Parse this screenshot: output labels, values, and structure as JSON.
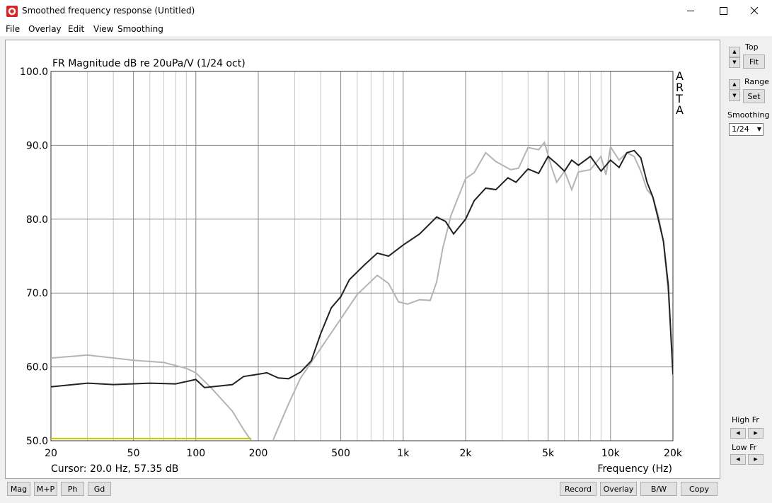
{
  "window": {
    "title": "Smoothed frequency response (Untitled)",
    "menu": [
      "File",
      "Overlay",
      "Edit",
      "View",
      "Smoothing"
    ]
  },
  "side_panel": {
    "top_label": "Top",
    "fit_button": "Fit",
    "range_label": "Range",
    "set_button": "Set",
    "smoothing_label": "Smoothing",
    "smoothing_value": "1/24",
    "high_fr_label": "High Fr",
    "low_fr_label": "Low Fr"
  },
  "bottom_buttons": {
    "left": [
      "Mag",
      "M+P",
      "Ph",
      "Gd"
    ],
    "right": [
      "Record",
      "Overlay",
      "B/W",
      "Copy"
    ]
  },
  "chart_data": {
    "type": "line",
    "title": "FR Magnitude dB re 20uPa/V (1/24 oct)",
    "watermark": "ARTA",
    "cursor": "Cursor: 20.0 Hz, 57.35 dB",
    "x_label": "Frequency (Hz)",
    "xscale": "log",
    "grid": true,
    "xlim": [
      20,
      20000
    ],
    "ylim": [
      50,
      100
    ],
    "xticks": [
      20,
      50,
      100,
      200,
      500,
      {
        "value": 1000,
        "label": "1k"
      },
      {
        "value": 2000,
        "label": "2k"
      },
      {
        "value": 5000,
        "label": "5k"
      },
      {
        "value": 10000,
        "label": "10k"
      },
      {
        "value": 20000,
        "label": "20k"
      }
    ],
    "xgrid": [
      30,
      40,
      60,
      70,
      80,
      90,
      300,
      400,
      600,
      700,
      800,
      900,
      3000,
      4000,
      6000,
      7000,
      8000,
      9000
    ],
    "yticks": [
      {
        "value": 50,
        "label": "50.0"
      },
      {
        "value": 60,
        "label": "60.0"
      },
      {
        "value": 70,
        "label": "70.0"
      },
      {
        "value": 80,
        "label": "80.0"
      },
      {
        "value": 90,
        "label": "90.0"
      },
      {
        "value": 100,
        "label": "100.0"
      }
    ],
    "series": [
      {
        "color": "#b4b4b4",
        "x": [
          20,
          30,
          50,
          70,
          90,
          100,
          120,
          150,
          170,
          185,
          200,
          220,
          235,
          280,
          320,
          400,
          500,
          600,
          750,
          850,
          950,
          1050,
          1200,
          1350,
          1450,
          1550,
          1700,
          2000,
          2200,
          2500,
          2800,
          3300,
          3600,
          4000,
          4500,
          4800,
          5200,
          5500,
          6000,
          6500,
          7000,
          8000,
          9000,
          9500,
          10000,
          11000,
          12000,
          13000,
          14000,
          15000,
          16000,
          17000,
          18000,
          19000,
          20000
        ],
        "values": [
          61.2,
          61.6,
          60.9,
          60.6,
          59.8,
          59.2,
          57,
          54,
          51.5,
          50,
          null,
          null,
          50,
          55,
          58.5,
          62.5,
          66.5,
          69.8,
          72.4,
          71.3,
          68.8,
          68.5,
          69.1,
          69,
          71.5,
          76,
          80.5,
          85.5,
          86.3,
          89,
          87.8,
          86.7,
          86.9,
          89.7,
          89.4,
          90.4,
          87,
          85,
          86.5,
          84,
          86.4,
          86.7,
          88.5,
          86,
          89.8,
          88,
          89,
          88.5,
          86.5,
          84,
          83,
          80.5,
          77,
          70,
          60
        ]
      },
      {
        "color": "#c8c800",
        "x": [
          20,
          185
        ],
        "values": [
          50.3,
          50.3
        ]
      },
      {
        "color": "#222222",
        "x": [
          20,
          30,
          40,
          60,
          80,
          100,
          110,
          150,
          170,
          200,
          220,
          250,
          280,
          320,
          360,
          400,
          450,
          500,
          550,
          650,
          750,
          850,
          1000,
          1200,
          1450,
          1600,
          1750,
          2000,
          2200,
          2500,
          2800,
          3200,
          3500,
          4000,
          4500,
          5000,
          5500,
          6000,
          6500,
          7000,
          8000,
          9000,
          10000,
          11000,
          12000,
          13000,
          14000,
          15000,
          16000,
          17000,
          18000,
          19000,
          20000
        ],
        "values": [
          57.3,
          57.8,
          57.6,
          57.8,
          57.7,
          58.3,
          57.2,
          57.6,
          58.7,
          59,
          59.2,
          58.5,
          58.4,
          59.3,
          60.8,
          64.5,
          68,
          69.5,
          71.8,
          73.8,
          75.4,
          75,
          76.5,
          78,
          80.3,
          79.7,
          78,
          80,
          82.5,
          84.2,
          84,
          85.6,
          85,
          86.8,
          86.2,
          88.5,
          87.5,
          86.5,
          88,
          87.3,
          88.5,
          86.5,
          88,
          87,
          89,
          89.3,
          88.3,
          85,
          83,
          80,
          77,
          71,
          59
        ]
      }
    ]
  }
}
